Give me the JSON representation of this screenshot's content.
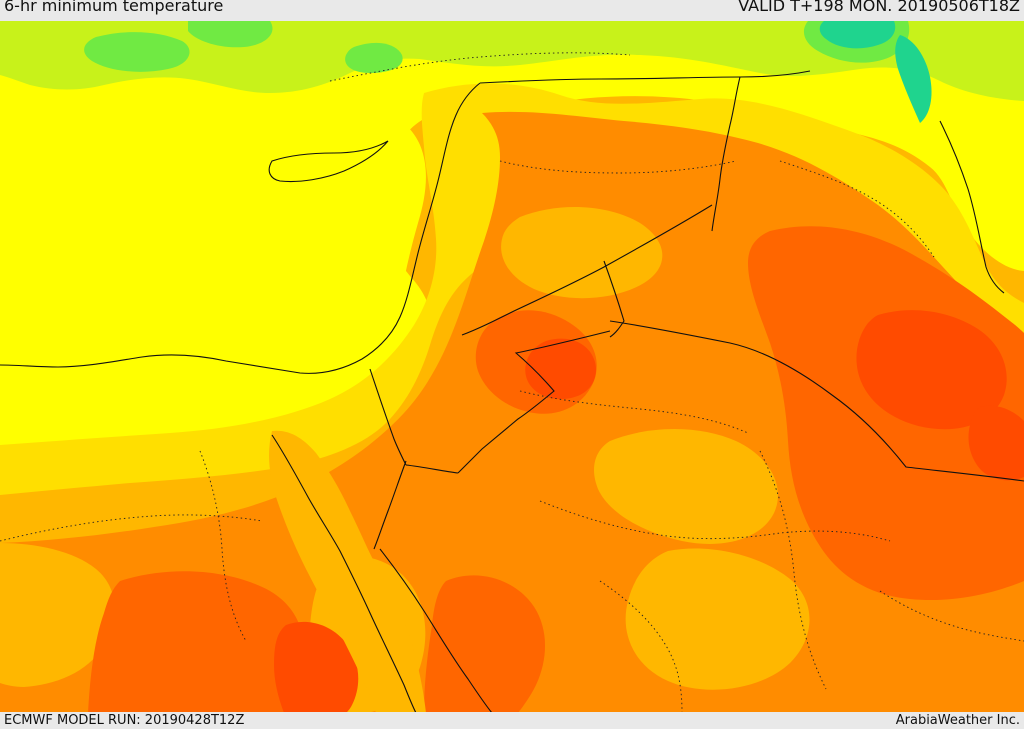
{
  "header": {
    "title": "6-hr minimum temperature",
    "validity": "VALID T+198 MON. 20190506T18Z"
  },
  "footer": {
    "model_run": "ECMWF MODEL RUN: 20190428T12Z",
    "credit": "ArabiaWeather Inc."
  },
  "palette": {
    "cold_teal": "#1fd48e",
    "green": "#70ea43",
    "yellow_green": "#c8f21a",
    "yellow": "#ffff00",
    "gold": "#ffdf00",
    "amber": "#ffb700",
    "orange": "#ff8c00",
    "dark_orange": "#ff6600",
    "red_orange": "#ff4b00",
    "border_line": "#111111"
  }
}
